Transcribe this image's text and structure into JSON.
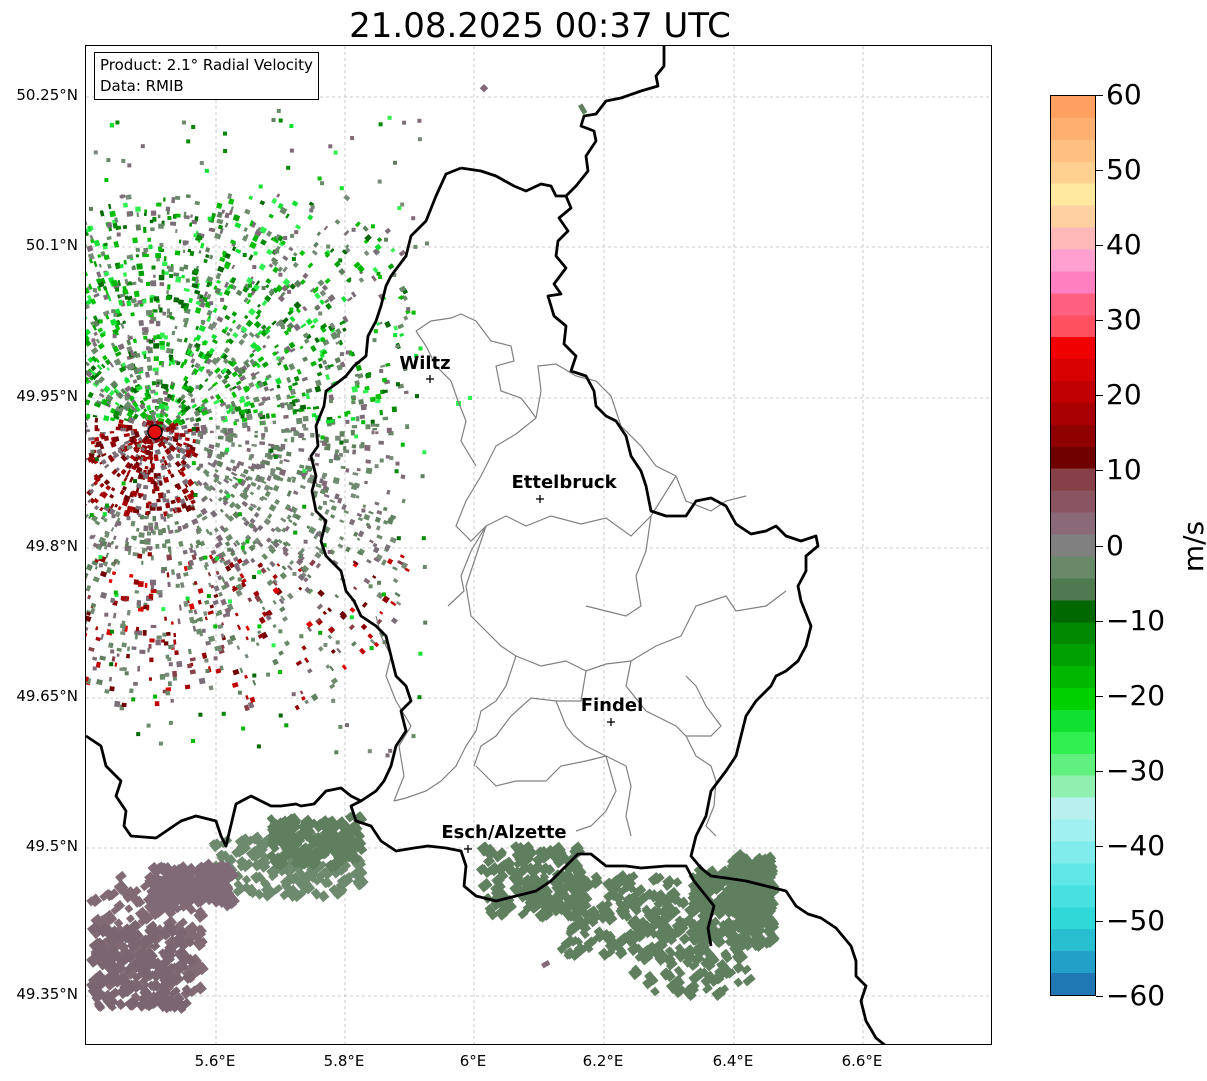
{
  "title": "21.08.2025 00:37 UTC",
  "product_box": {
    "line1": "Product: 2.1° Radial Velocity",
    "line2": "Data: RMIB"
  },
  "lat_labels": [
    "50.25°N",
    "50.1°N",
    "49.95°N",
    "49.8°N",
    "49.65°N",
    "49.5°N",
    "49.35°N"
  ],
  "lon_labels": [
    "5.6°E",
    "5.8°E",
    "6°E",
    "6.2°E",
    "6.4°E",
    "6.6°E"
  ],
  "cities": [
    {
      "name": "Wiltz"
    },
    {
      "name": "Ettelbruck"
    },
    {
      "name": "Findel"
    },
    {
      "name": "Esch/Alzette"
    }
  ],
  "colorbar": {
    "unit": "m/s",
    "ticks": [
      "60",
      "50",
      "40",
      "30",
      "20",
      "10",
      "0",
      "−10",
      "−20",
      "−30",
      "−40",
      "−50",
      "−60"
    ],
    "range": [
      -60,
      60
    ],
    "colors": [
      "#1f77b4",
      "#22a0c8",
      "#28c0d0",
      "#30d8d8",
      "#48e0e0",
      "#60e8e8",
      "#80ecec",
      "#a0f0f0",
      "#b8f0f0",
      "#90f0b0",
      "#60f080",
      "#30f050",
      "#10e030",
      "#00d000",
      "#00b800",
      "#00a000",
      "#008800",
      "#006800",
      "#4f7a4f",
      "#688a68",
      "#808080",
      "#8a6a78",
      "#8a5560",
      "#884048",
      "#700000",
      "#900000",
      "#a80000",
      "#c00000",
      "#d80000",
      "#f00000",
      "#ff5060",
      "#ff6080",
      "#ff80c0",
      "#ffa0d0",
      "#ffb8b8",
      "#ffd0a0",
      "#ffe8a0",
      "#ffd090",
      "#ffc080",
      "#ffb070",
      "#ffa060"
    ]
  },
  "legend_colors": {
    "border": "#000000",
    "region_lines": "#808080",
    "radar_site": "#e00000"
  }
}
